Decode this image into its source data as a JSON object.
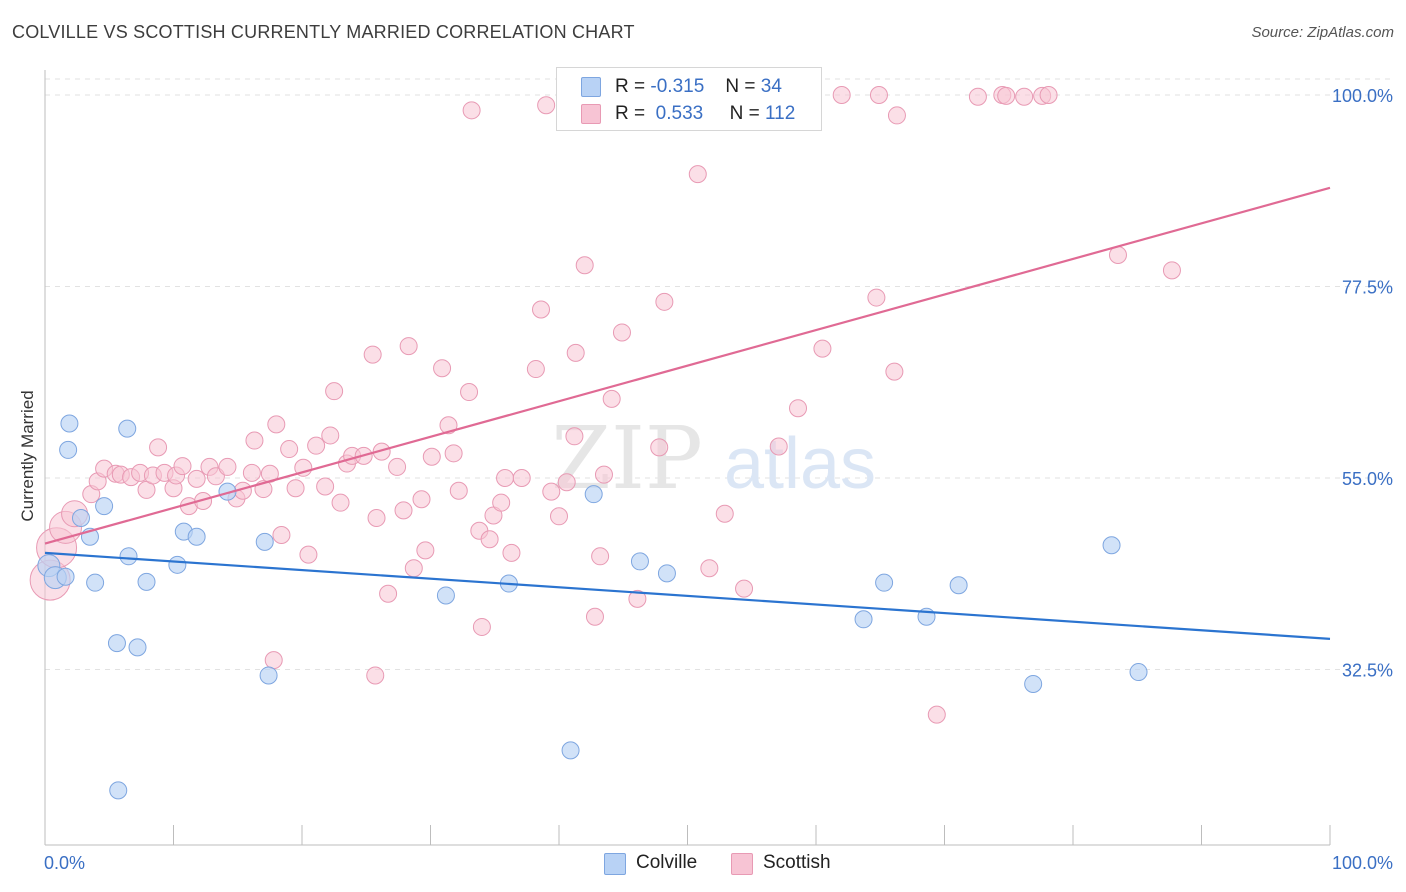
{
  "title": "COLVILLE VS SCOTTISH CURRENTLY MARRIED CORRELATION CHART",
  "source": "Source: ZipAtlas.com",
  "watermark": {
    "zip": "ZIP",
    "atlas": "atlas"
  },
  "legend_top": {
    "rows": [
      {
        "r_label": "R =",
        "r_value": "-0.315",
        "n_label": "N =",
        "n_value": "34"
      },
      {
        "r_label": "R =",
        "r_value": "0.533",
        "n_label": "N =",
        "n_value": "112"
      }
    ]
  },
  "legend_bottom": {
    "items": [
      "Colville",
      "Scottish"
    ]
  },
  "colors": {
    "colville_fill": "#b8d2f5",
    "colville_stroke": "#7ea6e0",
    "colville_line": "#2b74d0",
    "scottish_fill": "#f7c4d4",
    "scottish_stroke": "#e89ab4",
    "scottish_line": "#e06a94",
    "tick_label": "#3a6fc4",
    "grid": "#e2e2e2"
  },
  "chart_data": {
    "type": "scatter",
    "title": "COLVILLE VS SCOTTISH CURRENTLY MARRIED CORRELATION CHART",
    "xlabel": "",
    "ylabel": "Currently Married",
    "xlim": [
      0,
      100
    ],
    "ylim": [
      10,
      100
    ],
    "x_tick_labels": [
      "0.0%",
      "100.0%"
    ],
    "y_ticks": [
      32.5,
      55.0,
      77.5,
      100.0
    ],
    "y_tick_labels": [
      "32.5%",
      "55.0%",
      "77.5%",
      "100.0%"
    ],
    "grid": true,
    "legend_position": "bottom",
    "series": [
      {
        "name": "Colville",
        "r": -0.315,
        "n": 34,
        "trend": {
          "x": [
            0,
            100
          ],
          "y": [
            46.2,
            36.1
          ]
        },
        "points": [
          [
            0.3,
            44.7
          ],
          [
            0.8,
            43.3
          ],
          [
            1.6,
            43.4
          ],
          [
            1.9,
            61.4
          ],
          [
            1.8,
            58.3
          ],
          [
            2.8,
            50.3
          ],
          [
            3.5,
            48.1
          ],
          [
            3.9,
            42.7
          ],
          [
            4.6,
            51.7
          ],
          [
            5.6,
            35.6
          ],
          [
            6.4,
            60.8
          ],
          [
            6.5,
            45.8
          ],
          [
            7.2,
            35.1
          ],
          [
            7.9,
            42.8
          ],
          [
            10.3,
            44.8
          ],
          [
            10.8,
            48.7
          ],
          [
            11.8,
            48.1
          ],
          [
            14.2,
            53.4
          ],
          [
            17.1,
            47.5
          ],
          [
            17.4,
            31.8
          ],
          [
            31.2,
            41.2
          ],
          [
            36.1,
            42.6
          ],
          [
            40.9,
            23.0
          ],
          [
            42.7,
            53.1
          ],
          [
            46.3,
            45.2
          ],
          [
            48.4,
            43.8
          ],
          [
            63.7,
            38.4
          ],
          [
            65.3,
            42.7
          ],
          [
            68.6,
            38.7
          ],
          [
            71.1,
            42.4
          ],
          [
            76.9,
            30.8
          ],
          [
            83.0,
            47.1
          ],
          [
            85.1,
            32.2
          ],
          [
            5.7,
            18.3
          ]
        ]
      },
      {
        "name": "Scottish",
        "r": 0.533,
        "n": 112,
        "trend": {
          "x": [
            0,
            100
          ],
          "y": [
            47.3,
            89.1
          ]
        },
        "points": [
          [
            0.4,
            43.0
          ],
          [
            0.9,
            46.8
          ],
          [
            1.6,
            49.2
          ],
          [
            2.3,
            50.8
          ],
          [
            3.6,
            53.1
          ],
          [
            4.1,
            54.6
          ],
          [
            4.6,
            56.1
          ],
          [
            5.5,
            55.5
          ],
          [
            5.9,
            55.4
          ],
          [
            6.7,
            55.1
          ],
          [
            7.4,
            55.6
          ],
          [
            7.9,
            53.6
          ],
          [
            8.4,
            55.3
          ],
          [
            8.8,
            58.6
          ],
          [
            9.3,
            55.6
          ],
          [
            10.0,
            53.8
          ],
          [
            10.2,
            55.3
          ],
          [
            10.7,
            56.4
          ],
          [
            11.2,
            51.7
          ],
          [
            11.8,
            54.9
          ],
          [
            12.3,
            52.3
          ],
          [
            12.8,
            56.3
          ],
          [
            13.3,
            55.2
          ],
          [
            14.2,
            56.3
          ],
          [
            14.9,
            52.6
          ],
          [
            15.4,
            53.5
          ],
          [
            16.1,
            55.6
          ],
          [
            16.3,
            59.4
          ],
          [
            17.0,
            53.7
          ],
          [
            17.5,
            55.5
          ],
          [
            18.0,
            61.3
          ],
          [
            18.4,
            48.3
          ],
          [
            19.0,
            58.4
          ],
          [
            19.5,
            53.8
          ],
          [
            20.1,
            56.2
          ],
          [
            20.5,
            46.0
          ],
          [
            21.1,
            58.8
          ],
          [
            21.8,
            54.0
          ],
          [
            22.2,
            60.0
          ],
          [
            22.5,
            65.2
          ],
          [
            23.0,
            52.1
          ],
          [
            23.5,
            56.7
          ],
          [
            23.9,
            57.6
          ],
          [
            24.8,
            57.6
          ],
          [
            25.5,
            69.5
          ],
          [
            25.8,
            50.3
          ],
          [
            26.2,
            58.1
          ],
          [
            26.7,
            41.4
          ],
          [
            27.4,
            56.3
          ],
          [
            27.9,
            51.2
          ],
          [
            28.3,
            70.5
          ],
          [
            28.7,
            44.4
          ],
          [
            29.3,
            52.5
          ],
          [
            30.1,
            57.5
          ],
          [
            30.9,
            67.9
          ],
          [
            31.4,
            61.2
          ],
          [
            31.8,
            57.9
          ],
          [
            32.2,
            53.5
          ],
          [
            33.0,
            65.1
          ],
          [
            33.8,
            48.8
          ],
          [
            34.0,
            37.5
          ],
          [
            34.6,
            47.8
          ],
          [
            34.9,
            50.6
          ],
          [
            35.5,
            52.1
          ],
          [
            35.8,
            55.0
          ],
          [
            36.3,
            46.2
          ],
          [
            37.1,
            55.0
          ],
          [
            38.2,
            67.8
          ],
          [
            38.6,
            74.8
          ],
          [
            39.4,
            53.4
          ],
          [
            40.0,
            50.5
          ],
          [
            41.3,
            69.7
          ],
          [
            41.2,
            59.9
          ],
          [
            42.0,
            80.0
          ],
          [
            42.8,
            38.7
          ],
          [
            43.2,
            45.8
          ],
          [
            43.5,
            55.4
          ],
          [
            44.1,
            64.3
          ],
          [
            44.9,
            72.1
          ],
          [
            46.1,
            40.8
          ],
          [
            47.8,
            58.6
          ],
          [
            48.2,
            75.7
          ],
          [
            50.8,
            90.7
          ],
          [
            51.7,
            44.4
          ],
          [
            52.9,
            50.8
          ],
          [
            54.4,
            42.0
          ],
          [
            57.1,
            58.7
          ],
          [
            58.6,
            63.2
          ],
          [
            60.5,
            70.2
          ],
          [
            64.7,
            76.2
          ],
          [
            66.1,
            67.5
          ],
          [
            69.4,
            27.2
          ],
          [
            39.0,
            98.8
          ],
          [
            33.2,
            98.2
          ],
          [
            52.9,
            100.0
          ],
          [
            58.1,
            100.0
          ],
          [
            62.0,
            100.0
          ],
          [
            64.9,
            100.0
          ],
          [
            72.6,
            99.8
          ],
          [
            74.5,
            100.0
          ],
          [
            74.8,
            99.9
          ],
          [
            76.2,
            99.8
          ],
          [
            77.6,
            99.9
          ],
          [
            78.1,
            100.0
          ],
          [
            83.5,
            81.2
          ],
          [
            87.7,
            79.4
          ],
          [
            56.4,
            100.0
          ],
          [
            66.3,
            97.6
          ],
          [
            25.7,
            31.8
          ],
          [
            29.6,
            46.5
          ],
          [
            17.8,
            33.6
          ],
          [
            40.6,
            54.5
          ]
        ]
      }
    ]
  }
}
